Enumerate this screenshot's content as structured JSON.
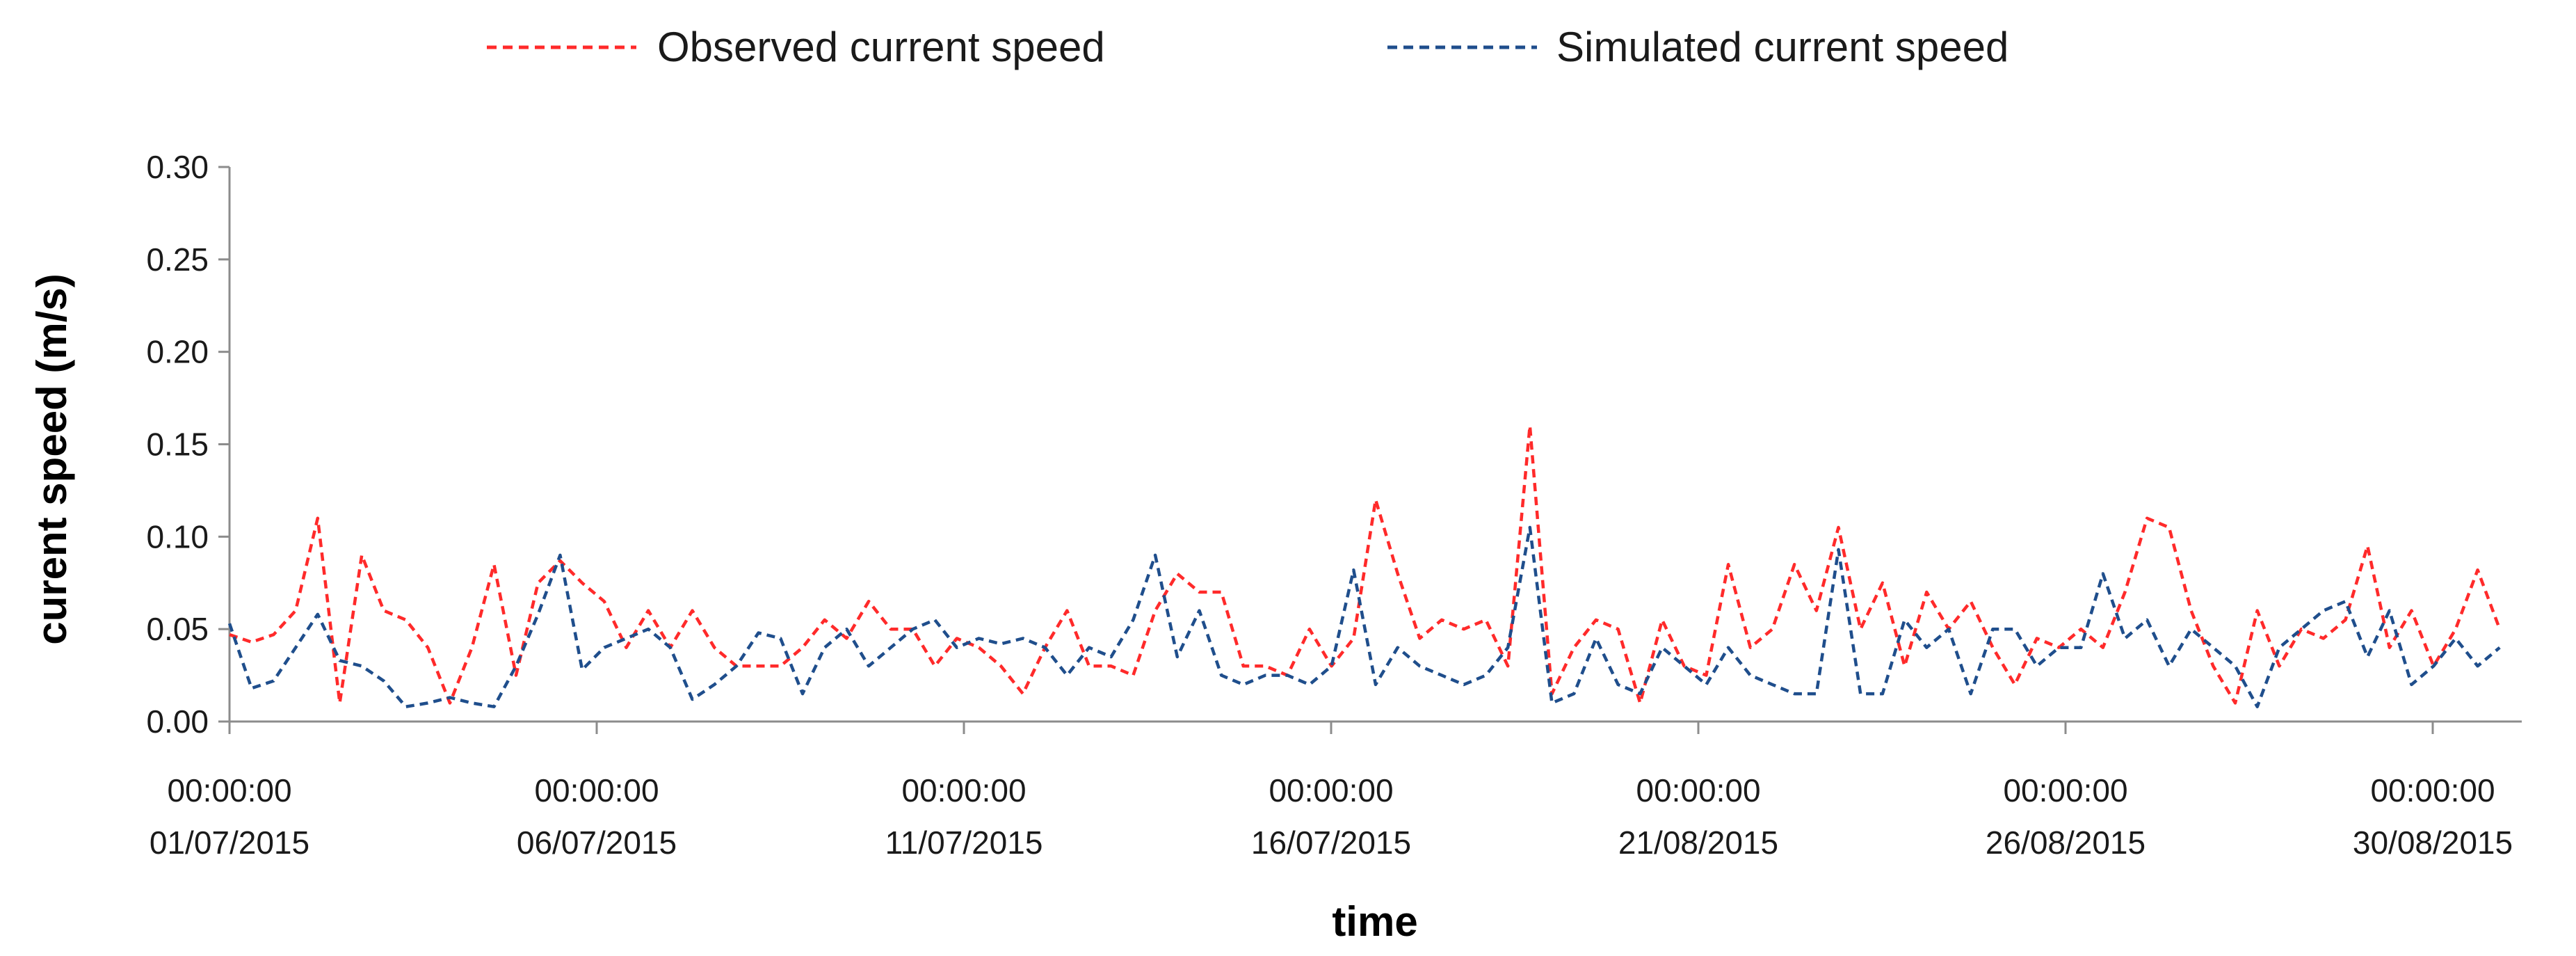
{
  "chart_data": {
    "type": "line",
    "title": "",
    "xlabel": "time",
    "ylabel": "curent speed (m/s)",
    "ylim": [
      0,
      0.3
    ],
    "yticks": [
      "0.00",
      "0.05",
      "0.10",
      "0.15",
      "0.20",
      "0.25",
      "0.30"
    ],
    "xticks": [
      {
        "time": "00:00:00",
        "date": "01/07/2015"
      },
      {
        "time": "00:00:00",
        "date": "06/07/2015"
      },
      {
        "time": "00:00:00",
        "date": "11/07/2015"
      },
      {
        "time": "00:00:00",
        "date": "16/07/2015"
      },
      {
        "time": "00:00:00",
        "date": "21/08/2015"
      },
      {
        "time": "00:00:00",
        "date": "26/08/2015"
      },
      {
        "time": "00:00:00",
        "date": "30/08/2015"
      }
    ],
    "x_range": [
      0,
      31.2
    ],
    "grid": false,
    "legend_position": "top",
    "series": [
      {
        "name": "Observed current speed",
        "color": "#ff2a2a",
        "style": "dashed",
        "points": [
          [
            0,
            0.047
          ],
          [
            0.3,
            0.043
          ],
          [
            0.6,
            0.047
          ],
          [
            0.9,
            0.06
          ],
          [
            1.2,
            0.11
          ],
          [
            1.5,
            0.01
          ],
          [
            1.8,
            0.09
          ],
          [
            2.1,
            0.06
          ],
          [
            2.4,
            0.055
          ],
          [
            2.7,
            0.04
          ],
          [
            3.0,
            0.01
          ],
          [
            3.3,
            0.04
          ],
          [
            3.6,
            0.085
          ],
          [
            3.9,
            0.025
          ],
          [
            4.2,
            0.075
          ],
          [
            4.5,
            0.087
          ],
          [
            4.8,
            0.075
          ],
          [
            5.1,
            0.065
          ],
          [
            5.4,
            0.04
          ],
          [
            5.7,
            0.06
          ],
          [
            6.0,
            0.04
          ],
          [
            6.3,
            0.06
          ],
          [
            6.6,
            0.04
          ],
          [
            6.9,
            0.03
          ],
          [
            7.2,
            0.03
          ],
          [
            7.5,
            0.03
          ],
          [
            7.8,
            0.04
          ],
          [
            8.1,
            0.055
          ],
          [
            8.4,
            0.045
          ],
          [
            8.7,
            0.065
          ],
          [
            9.0,
            0.05
          ],
          [
            9.3,
            0.05
          ],
          [
            9.6,
            0.03
          ],
          [
            9.9,
            0.045
          ],
          [
            10.2,
            0.04
          ],
          [
            10.5,
            0.03
          ],
          [
            10.8,
            0.015
          ],
          [
            11.1,
            0.04
          ],
          [
            11.4,
            0.06
          ],
          [
            11.7,
            0.03
          ],
          [
            12.0,
            0.03
          ],
          [
            12.3,
            0.025
          ],
          [
            12.6,
            0.06
          ],
          [
            12.9,
            0.08
          ],
          [
            13.2,
            0.07
          ],
          [
            13.5,
            0.07
          ],
          [
            13.8,
            0.03
          ],
          [
            14.1,
            0.03
          ],
          [
            14.4,
            0.025
          ],
          [
            14.7,
            0.05
          ],
          [
            15.0,
            0.03
          ],
          [
            15.3,
            0.045
          ],
          [
            15.6,
            0.12
          ],
          [
            15.9,
            0.08
          ],
          [
            16.2,
            0.045
          ],
          [
            16.5,
            0.055
          ],
          [
            16.8,
            0.05
          ],
          [
            17.1,
            0.055
          ],
          [
            17.4,
            0.03
          ],
          [
            17.7,
            0.16
          ],
          [
            18.0,
            0.015
          ],
          [
            18.3,
            0.04
          ],
          [
            18.6,
            0.055
          ],
          [
            18.9,
            0.05
          ],
          [
            19.2,
            0.01
          ],
          [
            19.5,
            0.055
          ],
          [
            19.8,
            0.03
          ],
          [
            20.1,
            0.025
          ],
          [
            20.4,
            0.085
          ],
          [
            20.7,
            0.04
          ],
          [
            21.0,
            0.05
          ],
          [
            21.3,
            0.085
          ],
          [
            21.6,
            0.06
          ],
          [
            21.9,
            0.105
          ],
          [
            22.2,
            0.05
          ],
          [
            22.5,
            0.075
          ],
          [
            22.8,
            0.03
          ],
          [
            23.1,
            0.07
          ],
          [
            23.4,
            0.05
          ],
          [
            23.7,
            0.065
          ],
          [
            24.0,
            0.04
          ],
          [
            24.3,
            0.02
          ],
          [
            24.6,
            0.045
          ],
          [
            24.9,
            0.04
          ],
          [
            25.2,
            0.05
          ],
          [
            25.5,
            0.04
          ],
          [
            25.8,
            0.07
          ],
          [
            26.1,
            0.11
          ],
          [
            26.4,
            0.105
          ],
          [
            26.7,
            0.06
          ],
          [
            27.0,
            0.03
          ],
          [
            27.3,
            0.01
          ],
          [
            27.6,
            0.06
          ],
          [
            27.9,
            0.03
          ],
          [
            28.2,
            0.05
          ],
          [
            28.5,
            0.045
          ],
          [
            28.8,
            0.055
          ],
          [
            29.1,
            0.095
          ],
          [
            29.4,
            0.04
          ],
          [
            29.7,
            0.06
          ],
          [
            30.0,
            0.03
          ],
          [
            30.3,
            0.05
          ],
          [
            30.6,
            0.082
          ],
          [
            30.9,
            0.05
          ]
        ]
      },
      {
        "name": "Simulated current speed",
        "color": "#1f4e8c",
        "style": "dashed",
        "points": [
          [
            0,
            0.053
          ],
          [
            0.3,
            0.018
          ],
          [
            0.6,
            0.022
          ],
          [
            0.9,
            0.04
          ],
          [
            1.2,
            0.058
          ],
          [
            1.5,
            0.033
          ],
          [
            1.8,
            0.03
          ],
          [
            2.1,
            0.022
          ],
          [
            2.4,
            0.008
          ],
          [
            2.7,
            0.01
          ],
          [
            3.0,
            0.013
          ],
          [
            3.3,
            0.01
          ],
          [
            3.6,
            0.008
          ],
          [
            3.9,
            0.03
          ],
          [
            4.2,
            0.058
          ],
          [
            4.5,
            0.09
          ],
          [
            4.8,
            0.028
          ],
          [
            5.1,
            0.04
          ],
          [
            5.4,
            0.045
          ],
          [
            5.7,
            0.05
          ],
          [
            6.0,
            0.04
          ],
          [
            6.3,
            0.012
          ],
          [
            6.6,
            0.02
          ],
          [
            6.9,
            0.03
          ],
          [
            7.2,
            0.048
          ],
          [
            7.5,
            0.045
          ],
          [
            7.8,
            0.015
          ],
          [
            8.1,
            0.04
          ],
          [
            8.4,
            0.05
          ],
          [
            8.7,
            0.03
          ],
          [
            9.0,
            0.04
          ],
          [
            9.3,
            0.05
          ],
          [
            9.6,
            0.055
          ],
          [
            9.9,
            0.04
          ],
          [
            10.2,
            0.045
          ],
          [
            10.5,
            0.042
          ],
          [
            10.8,
            0.045
          ],
          [
            11.1,
            0.04
          ],
          [
            11.4,
            0.025
          ],
          [
            11.7,
            0.04
          ],
          [
            12.0,
            0.035
          ],
          [
            12.3,
            0.055
          ],
          [
            12.6,
            0.09
          ],
          [
            12.9,
            0.035
          ],
          [
            13.2,
            0.06
          ],
          [
            13.5,
            0.025
          ],
          [
            13.8,
            0.02
          ],
          [
            14.1,
            0.025
          ],
          [
            14.4,
            0.025
          ],
          [
            14.7,
            0.02
          ],
          [
            15.0,
            0.03
          ],
          [
            15.3,
            0.082
          ],
          [
            15.6,
            0.02
          ],
          [
            15.9,
            0.04
          ],
          [
            16.2,
            0.03
          ],
          [
            16.5,
            0.025
          ],
          [
            16.8,
            0.02
          ],
          [
            17.1,
            0.025
          ],
          [
            17.4,
            0.04
          ],
          [
            17.7,
            0.105
          ],
          [
            18.0,
            0.01
          ],
          [
            18.3,
            0.015
          ],
          [
            18.6,
            0.045
          ],
          [
            18.9,
            0.02
          ],
          [
            19.2,
            0.015
          ],
          [
            19.5,
            0.04
          ],
          [
            19.8,
            0.03
          ],
          [
            20.1,
            0.02
          ],
          [
            20.4,
            0.04
          ],
          [
            20.7,
            0.025
          ],
          [
            21.0,
            0.02
          ],
          [
            21.3,
            0.015
          ],
          [
            21.6,
            0.015
          ],
          [
            21.9,
            0.093
          ],
          [
            22.2,
            0.015
          ],
          [
            22.5,
            0.015
          ],
          [
            22.8,
            0.055
          ],
          [
            23.1,
            0.04
          ],
          [
            23.4,
            0.05
          ],
          [
            23.7,
            0.015
          ],
          [
            24.0,
            0.05
          ],
          [
            24.3,
            0.05
          ],
          [
            24.6,
            0.03
          ],
          [
            24.9,
            0.04
          ],
          [
            25.2,
            0.04
          ],
          [
            25.5,
            0.08
          ],
          [
            25.8,
            0.045
          ],
          [
            26.1,
            0.055
          ],
          [
            26.4,
            0.03
          ],
          [
            26.7,
            0.05
          ],
          [
            27.0,
            0.04
          ],
          [
            27.3,
            0.03
          ],
          [
            27.6,
            0.008
          ],
          [
            27.9,
            0.04
          ],
          [
            28.2,
            0.05
          ],
          [
            28.5,
            0.06
          ],
          [
            28.8,
            0.065
          ],
          [
            29.1,
            0.035
          ],
          [
            29.4,
            0.06
          ],
          [
            29.7,
            0.02
          ],
          [
            30.0,
            0.03
          ],
          [
            30.3,
            0.045
          ],
          [
            30.6,
            0.03
          ],
          [
            30.9,
            0.04
          ]
        ]
      }
    ]
  }
}
